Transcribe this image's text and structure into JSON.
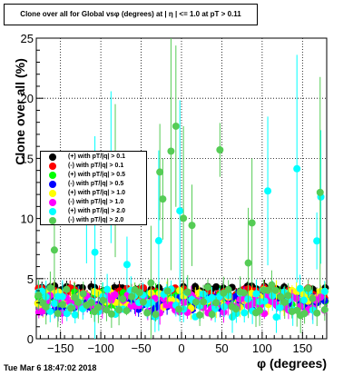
{
  "title": "Clone  over all for Global vsφ (degrees) at | η | <= 1.0 at pT > 0.11",
  "timestamp": "Tue Mar  6 18:47:02 2018",
  "chart_data": {
    "type": "scatter",
    "xlabel": "φ (degrees)",
    "ylabel": "Clone  over all (%)",
    "xlim": [
      -180,
      180
    ],
    "ylim": [
      0,
      25
    ],
    "xticks": [
      -150,
      -100,
      -50,
      0,
      50,
      100,
      150
    ],
    "yticks": [
      0,
      5,
      10,
      15,
      20,
      25
    ],
    "xtick_labels": [
      "−150",
      "−100",
      "−50",
      "0",
      "50",
      "100",
      "150"
    ],
    "ytick_labels": [
      "0",
      "5",
      "10",
      "15",
      "20",
      "25"
    ],
    "grid": true,
    "legend_position": "left-middle",
    "series": [
      {
        "name": "(+) with pT/|q| > 0.1",
        "color": "#000000",
        "base": 4.0,
        "spread": 0.4,
        "spike": 0.0,
        "seed": 1
      },
      {
        "name": "(-) with pT/|q| > 0.1",
        "color": "#ff0000",
        "base": 3.8,
        "spread": 0.5,
        "spike": 0.0,
        "seed": 2
      },
      {
        "name": "(+) with pT/|q| > 0.5",
        "color": "#00ff00",
        "base": 3.3,
        "spread": 0.6,
        "spike": 0.0,
        "seed": 3
      },
      {
        "name": "(-) with pT/|q| > 0.5",
        "color": "#0000ff",
        "base": 3.0,
        "spread": 0.7,
        "spike": 0.0,
        "seed": 4
      },
      {
        "name": "(+) with pT/|q| > 1.0",
        "color": "#ffff00",
        "base": 3.3,
        "spread": 0.8,
        "spike": 0.0,
        "seed": 5
      },
      {
        "name": "(-) with pT/|q| > 1.0",
        "color": "#ff00ff",
        "base": 2.9,
        "spread": 0.8,
        "spike": 0.0,
        "seed": 6
      },
      {
        "name": "(+) with pT/|q| > 2.0",
        "color": "#00ffff",
        "base": 3.0,
        "spread": 1.2,
        "spike": 0.12,
        "seed": 7
      },
      {
        "name": "(-) with pT/|q| > 2.0",
        "color": "#55cc55",
        "base": 3.2,
        "spread": 1.3,
        "spike": 0.15,
        "seed": 8
      }
    ],
    "n_points": 72
  }
}
